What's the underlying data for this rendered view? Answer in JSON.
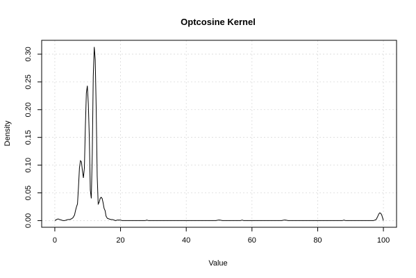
{
  "chart_data": {
    "type": "line",
    "title": "Optcosine Kernel",
    "xlabel": "Value",
    "ylabel": "Density",
    "xlim": [
      -4,
      104
    ],
    "ylim": [
      -0.012,
      0.325
    ],
    "grid": true,
    "x_ticks": [
      0,
      20,
      40,
      60,
      80,
      100
    ],
    "y_ticks": [
      0.0,
      0.05,
      0.1,
      0.15,
      0.2,
      0.25,
      0.3
    ],
    "x_tick_labels": [
      "0",
      "20",
      "40",
      "60",
      "80",
      "100"
    ],
    "y_tick_labels": [
      "0.00",
      "0.05",
      "0.10",
      "0.15",
      "0.20",
      "0.25",
      "0.30"
    ],
    "series": [
      {
        "x": [
          0,
          0.5,
          1,
          1.5,
          2,
          2.5,
          3,
          3.5,
          4,
          4.5,
          5,
          5.5,
          6,
          6.3,
          6.6,
          6.9,
          7.2,
          7.5,
          7.8,
          8.1,
          8.4,
          8.7,
          9.0,
          9.3,
          9.6,
          9.9,
          10.2,
          10.5,
          10.8,
          11.1,
          11.4,
          11.7,
          12.0,
          12.3,
          12.6,
          12.9,
          13.2,
          13.5,
          13.8,
          14.1,
          14.4,
          14.7,
          15.0,
          15.3,
          15.6,
          16.0,
          16.5,
          17.0,
          17.5,
          18.0,
          18.5,
          19.0,
          19.5,
          20.0,
          20.5,
          21.0,
          22,
          24,
          26,
          27.5,
          28,
          28.5,
          30,
          35,
          40,
          45,
          49,
          49.8,
          50.2,
          51,
          55,
          56.5,
          57,
          57.5,
          60,
          65,
          69,
          69.8,
          70.2,
          71,
          75,
          80,
          85,
          87.5,
          88,
          88.5,
          90,
          95,
          97,
          97.8,
          98.3,
          98.6,
          98.9,
          99.2,
          99.5,
          99.8,
          100.0
        ],
        "y": [
          0.0,
          0.002,
          0.003,
          0.002,
          0.001,
          0.0,
          0.0,
          0.001,
          0.002,
          0.002,
          0.003,
          0.005,
          0.01,
          0.018,
          0.025,
          0.03,
          0.06,
          0.095,
          0.108,
          0.106,
          0.09,
          0.077,
          0.095,
          0.17,
          0.23,
          0.243,
          0.21,
          0.15,
          0.055,
          0.04,
          0.12,
          0.26,
          0.313,
          0.29,
          0.2,
          0.08,
          0.03,
          0.033,
          0.04,
          0.042,
          0.04,
          0.032,
          0.022,
          0.018,
          0.008,
          0.004,
          0.003,
          0.002,
          0.002,
          0.001,
          0.0,
          0.001,
          0.001,
          0.001,
          0.0,
          0.0,
          0.0,
          0.0,
          0.0,
          0.0,
          0.001,
          0.0,
          0.0,
          0.0,
          0.0,
          0.0,
          0.0,
          0.001,
          0.001,
          0.0,
          0.0,
          0.0,
          0.001,
          0.0,
          0.0,
          0.0,
          0.0,
          0.001,
          0.001,
          0.0,
          0.0,
          0.0,
          0.0,
          0.0,
          0.001,
          0.0,
          0.0,
          0.0,
          0.0,
          0.002,
          0.008,
          0.012,
          0.014,
          0.013,
          0.01,
          0.004,
          0.0
        ]
      }
    ]
  }
}
